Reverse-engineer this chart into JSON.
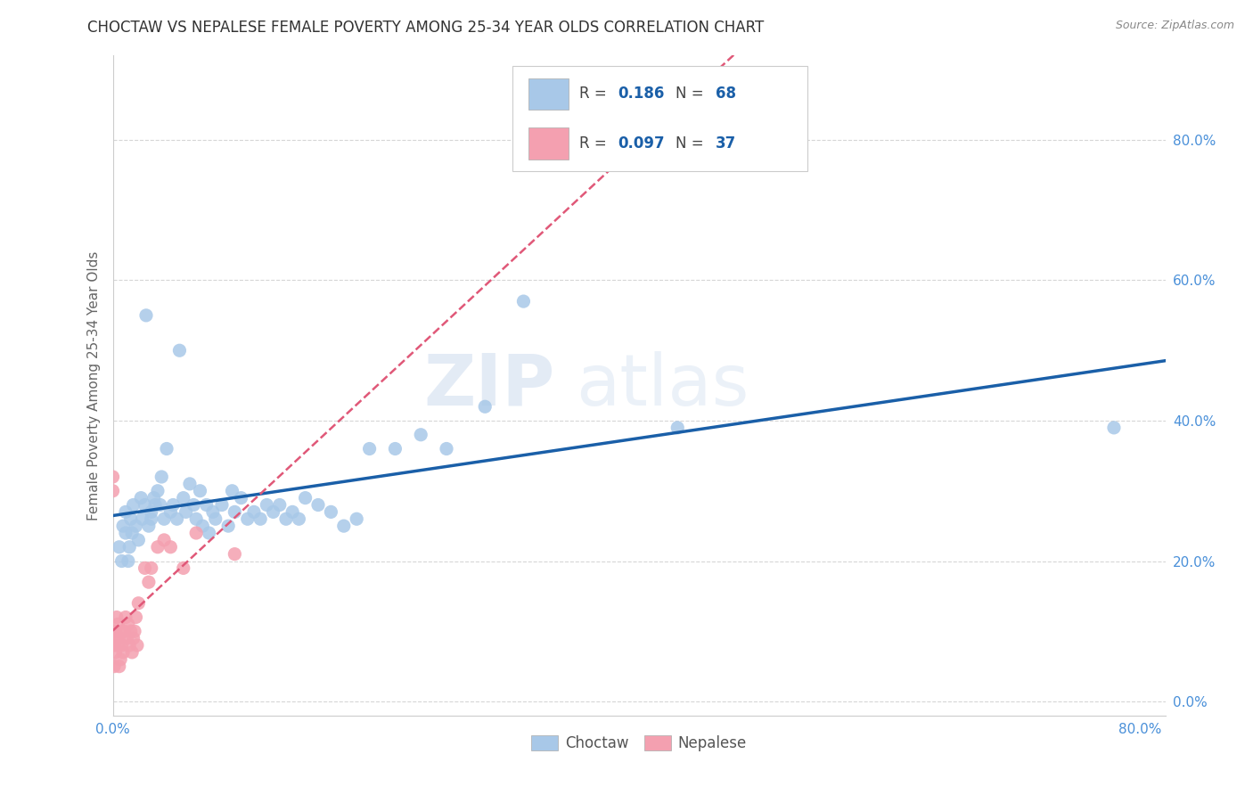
{
  "title": "CHOCTAW VS NEPALESE FEMALE POVERTY AMONG 25-34 YEAR OLDS CORRELATION CHART",
  "source": "Source: ZipAtlas.com",
  "ylabel": "Female Poverty Among 25-34 Year Olds",
  "xlim": [
    0.0,
    0.82
  ],
  "ylim": [
    -0.02,
    0.92
  ],
  "x_ticks": [
    0.0,
    0.8
  ],
  "y_ticks": [
    0.0,
    0.2,
    0.4,
    0.6,
    0.8
  ],
  "x_tick_labels": [
    "0.0%",
    "80.0%"
  ],
  "y_tick_labels": [
    "0.0%",
    "20.0%",
    "40.0%",
    "60.0%",
    "80.0%"
  ],
  "choctaw_color": "#a8c8e8",
  "nepalese_color": "#f4a0b0",
  "choctaw_line_color": "#1a5fa8",
  "nepalese_line_color": "#e05878",
  "R_choctaw": 0.186,
  "N_choctaw": 68,
  "R_nepalese": 0.097,
  "N_nepalese": 37,
  "choctaw_x": [
    0.005,
    0.007,
    0.008,
    0.01,
    0.01,
    0.012,
    0.013,
    0.014,
    0.015,
    0.016,
    0.018,
    0.02,
    0.022,
    0.023,
    0.025,
    0.026,
    0.028,
    0.03,
    0.03,
    0.032,
    0.033,
    0.035,
    0.037,
    0.038,
    0.04,
    0.042,
    0.045,
    0.047,
    0.05,
    0.052,
    0.055,
    0.057,
    0.06,
    0.063,
    0.065,
    0.068,
    0.07,
    0.073,
    0.075,
    0.078,
    0.08,
    0.085,
    0.09,
    0.093,
    0.095,
    0.1,
    0.105,
    0.11,
    0.115,
    0.12,
    0.125,
    0.13,
    0.135,
    0.14,
    0.145,
    0.15,
    0.16,
    0.17,
    0.18,
    0.19,
    0.2,
    0.22,
    0.24,
    0.26,
    0.29,
    0.32,
    0.44,
    0.78
  ],
  "choctaw_y": [
    0.22,
    0.2,
    0.25,
    0.24,
    0.27,
    0.2,
    0.22,
    0.26,
    0.24,
    0.28,
    0.25,
    0.23,
    0.29,
    0.26,
    0.28,
    0.55,
    0.25,
    0.27,
    0.26,
    0.29,
    0.28,
    0.3,
    0.28,
    0.32,
    0.26,
    0.36,
    0.27,
    0.28,
    0.26,
    0.5,
    0.29,
    0.27,
    0.31,
    0.28,
    0.26,
    0.3,
    0.25,
    0.28,
    0.24,
    0.27,
    0.26,
    0.28,
    0.25,
    0.3,
    0.27,
    0.29,
    0.26,
    0.27,
    0.26,
    0.28,
    0.27,
    0.28,
    0.26,
    0.27,
    0.26,
    0.29,
    0.28,
    0.27,
    0.25,
    0.26,
    0.36,
    0.36,
    0.38,
    0.36,
    0.42,
    0.57,
    0.39,
    0.39
  ],
  "nepalese_x": [
    0.0,
    0.0,
    0.001,
    0.001,
    0.002,
    0.002,
    0.003,
    0.003,
    0.004,
    0.004,
    0.005,
    0.005,
    0.006,
    0.006,
    0.007,
    0.008,
    0.009,
    0.01,
    0.011,
    0.012,
    0.013,
    0.014,
    0.015,
    0.016,
    0.017,
    0.018,
    0.019,
    0.02,
    0.025,
    0.028,
    0.03,
    0.035,
    0.04,
    0.045,
    0.055,
    0.065,
    0.095
  ],
  "nepalese_y": [
    0.32,
    0.3,
    0.05,
    0.08,
    0.07,
    0.1,
    0.09,
    0.12,
    0.08,
    0.11,
    0.05,
    0.09,
    0.06,
    0.1,
    0.08,
    0.07,
    0.1,
    0.12,
    0.09,
    0.11,
    0.08,
    0.1,
    0.07,
    0.09,
    0.1,
    0.12,
    0.08,
    0.14,
    0.19,
    0.17,
    0.19,
    0.22,
    0.23,
    0.22,
    0.19,
    0.24,
    0.21
  ],
  "watermark_zip": "ZIP",
  "watermark_atlas": "atlas",
  "background_color": "#ffffff",
  "grid_color": "#cccccc",
  "title_fontsize": 12,
  "axis_label_fontsize": 11,
  "tick_fontsize": 11,
  "tick_color": "#4a90d9"
}
